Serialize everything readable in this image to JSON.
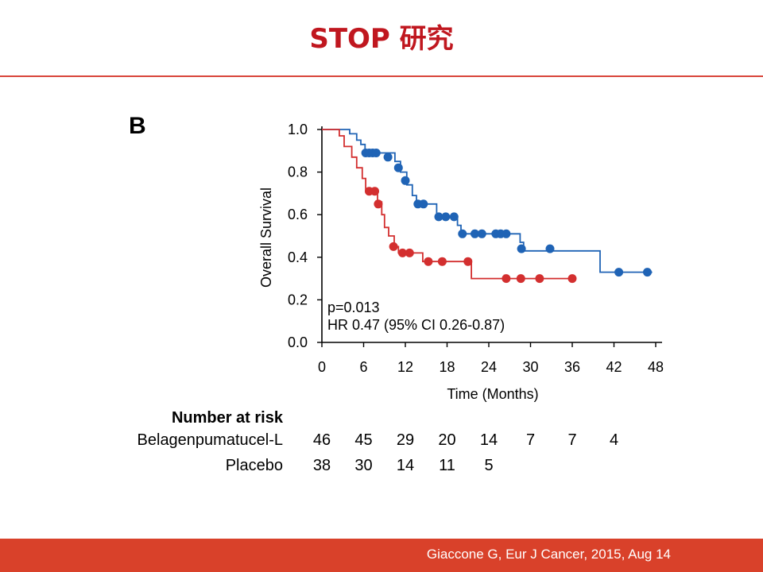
{
  "slide": {
    "title": "STOP 研究",
    "panel_label": "B",
    "citation": "Giaccone G, Eur J Cancer, 2015, Aug 14"
  },
  "colors": {
    "title": "#c0171f",
    "footer_bar": "#d9412a",
    "series_belagenpumatucel": "#1f63b5",
    "series_placebo": "#d32f2f"
  },
  "chart_data": {
    "type": "line",
    "title": "",
    "xlabel": "Time (Months)",
    "ylabel": "Overall Survival",
    "xlim": [
      0,
      48
    ],
    "ylim": [
      0,
      1.0
    ],
    "xticks": [
      0,
      6,
      12,
      18,
      24,
      30,
      36,
      42,
      48
    ],
    "yticks": [
      0.0,
      0.2,
      0.4,
      0.6,
      0.8,
      1.0
    ],
    "ytick_labels": [
      "0.0",
      "0.2",
      "0.4",
      "0.6",
      "0.8",
      "1.0"
    ],
    "step": true,
    "grid": false,
    "annotations": [
      "p=0.013",
      "HR 0.47 (95% CI 0.26-0.87)"
    ],
    "series": [
      {
        "id": "belagenpumatucel",
        "color": "#1f63b5",
        "steps": [
          [
            0,
            1.0
          ],
          [
            4.0,
            1.0
          ],
          [
            4.0,
            0.98
          ],
          [
            5.0,
            0.98
          ],
          [
            5.0,
            0.95
          ],
          [
            5.6,
            0.95
          ],
          [
            5.6,
            0.93
          ],
          [
            6.2,
            0.93
          ],
          [
            6.2,
            0.89
          ],
          [
            10.5,
            0.89
          ],
          [
            10.5,
            0.85
          ],
          [
            11.3,
            0.85
          ],
          [
            11.3,
            0.8
          ],
          [
            12.2,
            0.8
          ],
          [
            12.2,
            0.74
          ],
          [
            13.0,
            0.74
          ],
          [
            13.0,
            0.69
          ],
          [
            13.6,
            0.69
          ],
          [
            13.6,
            0.65
          ],
          [
            16.5,
            0.65
          ],
          [
            16.5,
            0.59
          ],
          [
            19.5,
            0.59
          ],
          [
            19.5,
            0.55
          ],
          [
            20.0,
            0.55
          ],
          [
            20.0,
            0.51
          ],
          [
            28.5,
            0.51
          ],
          [
            28.5,
            0.47
          ],
          [
            29.0,
            0.47
          ],
          [
            29.0,
            0.43
          ],
          [
            40.0,
            0.43
          ],
          [
            40.0,
            0.33
          ],
          [
            47.5,
            0.33
          ]
        ],
        "censored": [
          [
            6.3,
            0.89
          ],
          [
            6.8,
            0.89
          ],
          [
            7.3,
            0.89
          ],
          [
            7.8,
            0.89
          ],
          [
            9.5,
            0.87
          ],
          [
            11.0,
            0.82
          ],
          [
            12.0,
            0.76
          ],
          [
            13.8,
            0.65
          ],
          [
            14.6,
            0.65
          ],
          [
            16.8,
            0.59
          ],
          [
            17.8,
            0.59
          ],
          [
            19.0,
            0.59
          ],
          [
            20.2,
            0.51
          ],
          [
            22.0,
            0.51
          ],
          [
            23.0,
            0.51
          ],
          [
            25.0,
            0.51
          ],
          [
            25.7,
            0.51
          ],
          [
            26.5,
            0.51
          ],
          [
            28.7,
            0.44
          ],
          [
            32.8,
            0.44
          ],
          [
            42.7,
            0.33
          ],
          [
            46.8,
            0.33
          ]
        ]
      },
      {
        "id": "placebo",
        "color": "#d32f2f",
        "steps": [
          [
            0,
            1.0
          ],
          [
            2.5,
            1.0
          ],
          [
            2.5,
            0.97
          ],
          [
            3.2,
            0.97
          ],
          [
            3.2,
            0.92
          ],
          [
            4.3,
            0.92
          ],
          [
            4.3,
            0.87
          ],
          [
            5.0,
            0.87
          ],
          [
            5.0,
            0.82
          ],
          [
            5.8,
            0.82
          ],
          [
            5.8,
            0.77
          ],
          [
            6.3,
            0.77
          ],
          [
            6.3,
            0.71
          ],
          [
            8.0,
            0.71
          ],
          [
            8.0,
            0.66
          ],
          [
            8.6,
            0.66
          ],
          [
            8.6,
            0.6
          ],
          [
            9.0,
            0.6
          ],
          [
            9.0,
            0.54
          ],
          [
            9.6,
            0.54
          ],
          [
            9.6,
            0.5
          ],
          [
            10.4,
            0.5
          ],
          [
            10.4,
            0.45
          ],
          [
            11.0,
            0.45
          ],
          [
            11.0,
            0.42
          ],
          [
            14.5,
            0.42
          ],
          [
            14.5,
            0.38
          ],
          [
            21.5,
            0.38
          ],
          [
            21.5,
            0.3
          ],
          [
            36.0,
            0.3
          ]
        ],
        "censored": [
          [
            6.8,
            0.71
          ],
          [
            7.6,
            0.71
          ],
          [
            8.1,
            0.65
          ],
          [
            10.3,
            0.45
          ],
          [
            11.6,
            0.42
          ],
          [
            12.6,
            0.42
          ],
          [
            15.3,
            0.38
          ],
          [
            17.3,
            0.38
          ],
          [
            21.0,
            0.38
          ],
          [
            26.5,
            0.3
          ],
          [
            28.6,
            0.3
          ],
          [
            31.3,
            0.3
          ],
          [
            36.0,
            0.3
          ]
        ]
      }
    ]
  },
  "risk_table": {
    "title": "Number at risk",
    "rows": [
      {
        "label": "Belagenpumatucel-L",
        "values": [
          {
            "t": 0,
            "n": "46"
          },
          {
            "t": 6,
            "n": "45"
          },
          {
            "t": 12,
            "n": "29"
          },
          {
            "t": 18,
            "n": "20"
          },
          {
            "t": 24,
            "n": "14"
          },
          {
            "t": 30,
            "n": "7"
          },
          {
            "t": 36,
            "n": "7"
          },
          {
            "t": 42,
            "n": "4"
          }
        ]
      },
      {
        "label": "Placebo",
        "values": [
          {
            "t": 0,
            "n": "38"
          },
          {
            "t": 6,
            "n": "30"
          },
          {
            "t": 12,
            "n": "14"
          },
          {
            "t": 18,
            "n": "11"
          },
          {
            "t": 24,
            "n": "5"
          }
        ]
      }
    ]
  }
}
